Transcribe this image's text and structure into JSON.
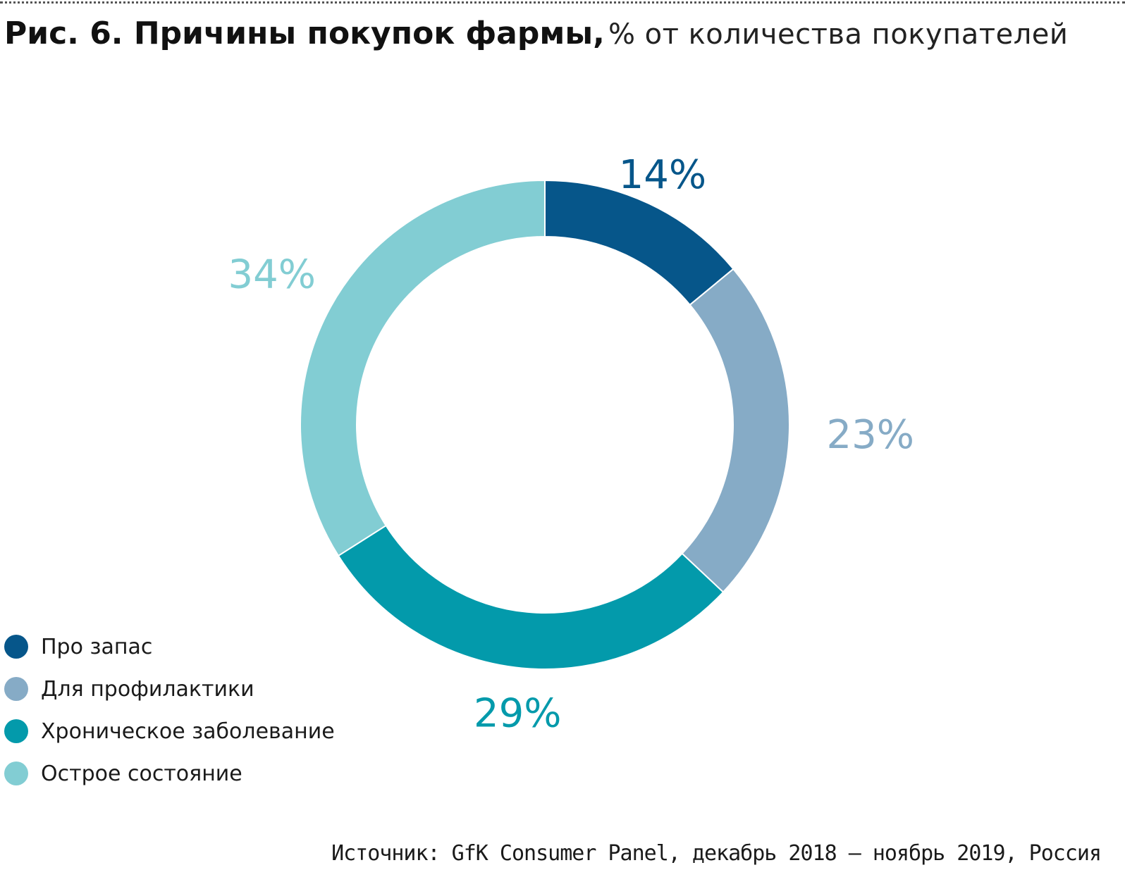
{
  "header": {
    "title_main": "Рис. 6. Причины покупок фармы,",
    "title_sub": "% от количества покупателей"
  },
  "chart_data": {
    "type": "pie",
    "variant": "donut",
    "title": "Рис. 6. Причины покупок фармы,",
    "subtitle": "% от количества покупателей",
    "unit": "%",
    "categories": [
      "Про запас",
      "Для профилактики",
      "Хроническое заболевание",
      "Острое состояние"
    ],
    "values": [
      14,
      23,
      29,
      34
    ],
    "labels": [
      "14%",
      "23%",
      "29%",
      "34%"
    ],
    "colors": [
      "#06568a",
      "#86abc6",
      "#039aab",
      "#82cdd3"
    ],
    "legend_placement": "bottom-left",
    "start_angle": "12 o'clock",
    "direction": "clockwise"
  },
  "footer": {
    "source": "Источник: GfK Consumer Panel, декабрь 2018 – ноябрь 2019, Россия"
  }
}
